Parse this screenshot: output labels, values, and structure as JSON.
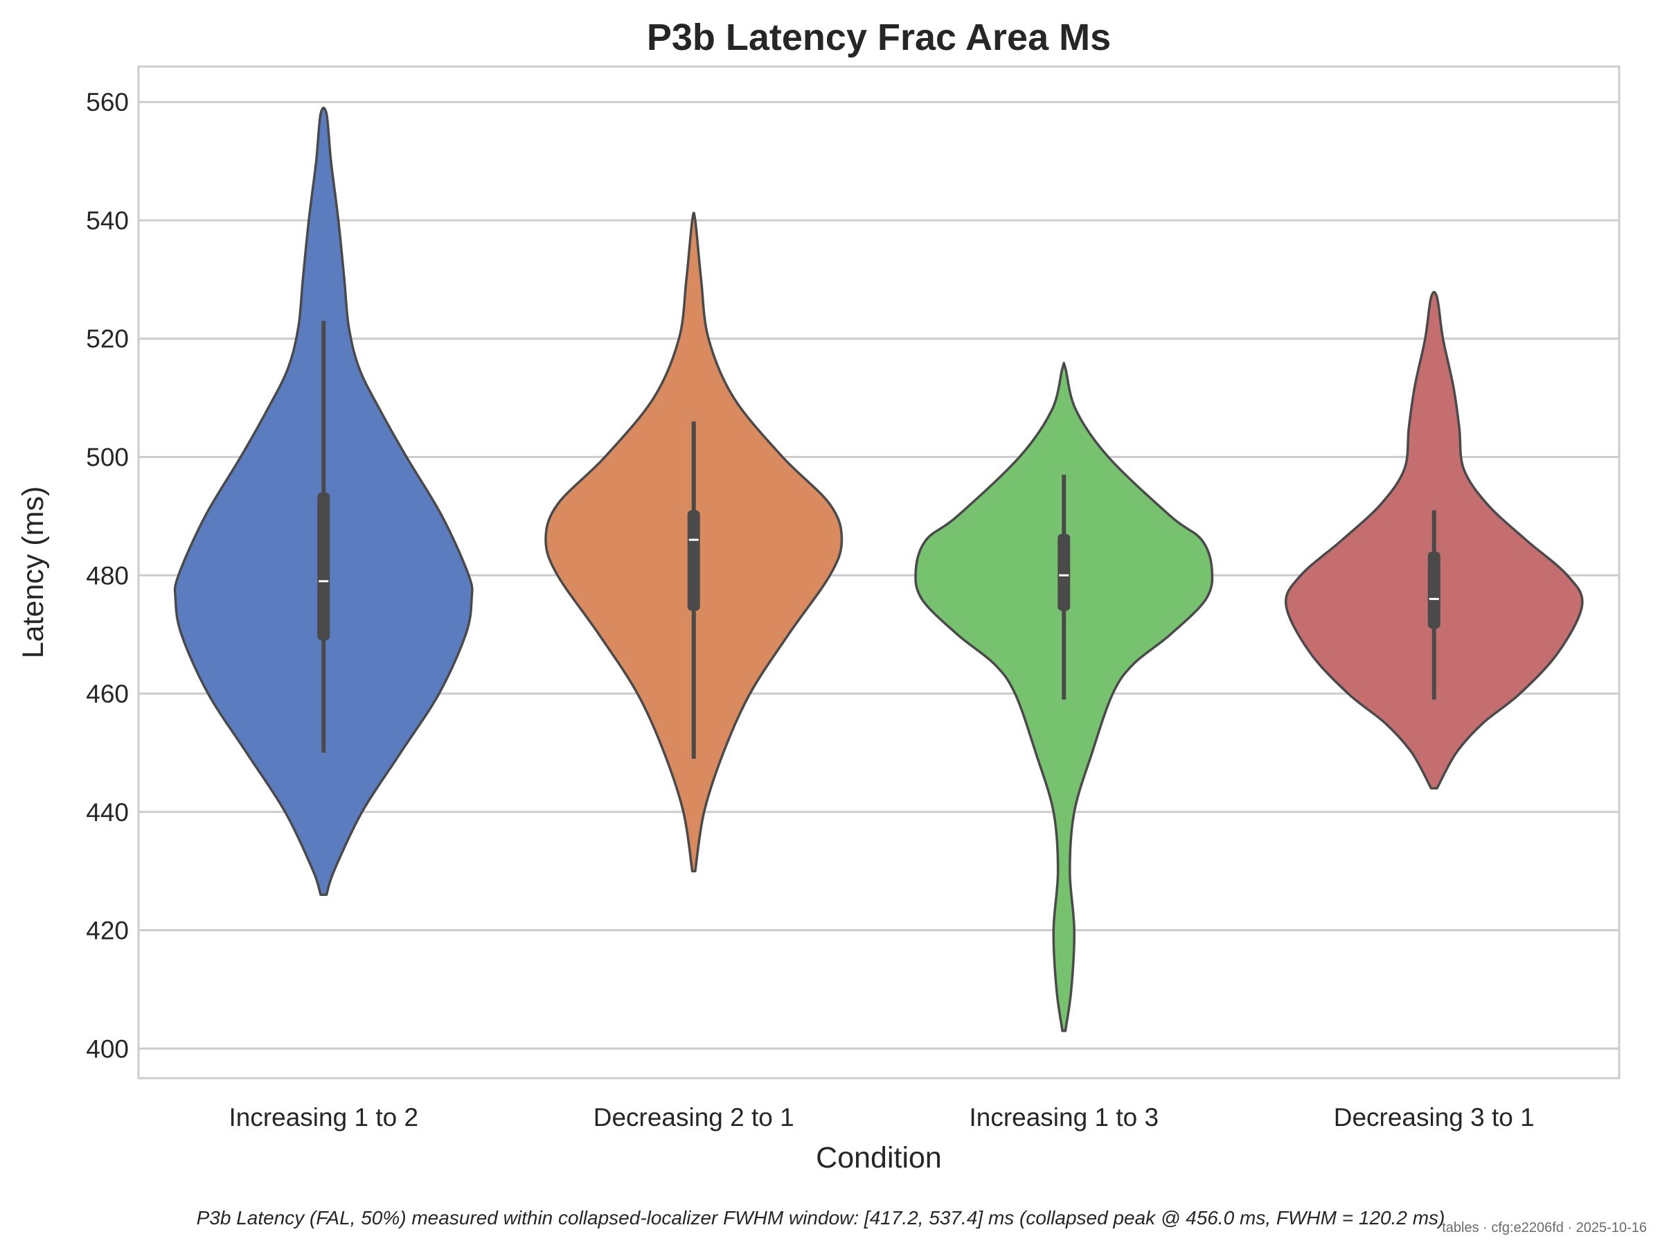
{
  "chart_data": {
    "type": "violin",
    "title": "P3b Latency Frac Area Ms",
    "xlabel": "Condition",
    "ylabel": "Latency (ms)",
    "ylim": [
      395,
      566
    ],
    "yticks": [
      400,
      420,
      440,
      460,
      480,
      500,
      520,
      540,
      560
    ],
    "grid": "horizontal",
    "categories": [
      "Increasing 1 to 2",
      "Decreasing 2 to 1",
      "Increasing 1 to 3",
      "Decreasing 3 to 1"
    ],
    "colors": [
      "#5b7dc0",
      "#d98a5e",
      "#77c26f",
      "#c56e6f"
    ],
    "outline_color": "#4a4a4a",
    "grid_color": "#cccccc",
    "violins": [
      {
        "name": "Increasing 1 to 2",
        "min": 450,
        "q1": 469,
        "median": 479,
        "q3": 494,
        "max": 523,
        "kde_min": 426,
        "kde_max": 558,
        "profile": [
          [
            426,
            0.02
          ],
          [
            430,
            0.07
          ],
          [
            440,
            0.26
          ],
          [
            450,
            0.52
          ],
          [
            460,
            0.78
          ],
          [
            470,
            0.96
          ],
          [
            476,
            1.0
          ],
          [
            480,
            0.98
          ],
          [
            490,
            0.8
          ],
          [
            500,
            0.56
          ],
          [
            508,
            0.38
          ],
          [
            515,
            0.24
          ],
          [
            522,
            0.17
          ],
          [
            530,
            0.14
          ],
          [
            540,
            0.1
          ],
          [
            550,
            0.05
          ],
          [
            558,
            0.02
          ]
        ]
      },
      {
        "name": "Decreasing 2 to 1",
        "min": 449,
        "q1": 474,
        "median": 486,
        "q3": 491,
        "max": 506,
        "kde_min": 430,
        "kde_max": 540,
        "profile": [
          [
            430,
            0.01
          ],
          [
            440,
            0.07
          ],
          [
            450,
            0.2
          ],
          [
            460,
            0.38
          ],
          [
            470,
            0.64
          ],
          [
            480,
            0.92
          ],
          [
            486,
            1.0
          ],
          [
            492,
            0.92
          ],
          [
            500,
            0.6
          ],
          [
            510,
            0.27
          ],
          [
            520,
            0.1
          ],
          [
            530,
            0.05
          ],
          [
            540,
            0.01
          ]
        ]
      },
      {
        "name": "Increasing 1 to 3",
        "min": 459,
        "q1": 474,
        "median": 480,
        "q3": 487,
        "max": 497,
        "kde_min": 403,
        "kde_max": 515,
        "profile": [
          [
            403,
            0.01
          ],
          [
            410,
            0.05
          ],
          [
            420,
            0.07
          ],
          [
            430,
            0.04
          ],
          [
            440,
            0.07
          ],
          [
            450,
            0.19
          ],
          [
            460,
            0.33
          ],
          [
            465,
            0.47
          ],
          [
            470,
            0.72
          ],
          [
            476,
            0.96
          ],
          [
            481,
            1.0
          ],
          [
            486,
            0.93
          ],
          [
            490,
            0.72
          ],
          [
            500,
            0.3
          ],
          [
            508,
            0.08
          ],
          [
            515,
            0.01
          ]
        ]
      },
      {
        "name": "Decreasing 3 to 1",
        "min": 459,
        "q1": 471,
        "median": 476,
        "q3": 484,
        "max": 491,
        "kde_min": 444,
        "kde_max": 527,
        "profile": [
          [
            444,
            0.02
          ],
          [
            450,
            0.15
          ],
          [
            455,
            0.33
          ],
          [
            460,
            0.58
          ],
          [
            467,
            0.84
          ],
          [
            475,
            1.0
          ],
          [
            480,
            0.9
          ],
          [
            486,
            0.62
          ],
          [
            492,
            0.36
          ],
          [
            498,
            0.2
          ],
          [
            505,
            0.17
          ],
          [
            512,
            0.13
          ],
          [
            520,
            0.06
          ],
          [
            527,
            0.02
          ]
        ]
      }
    ],
    "caption": "P3b Latency (FAL, 50%) measured within collapsed-localizer FWHM window: [417.2, 537.4] ms (collapsed peak @ 456.0 ms, FWHM = 120.2 ms)",
    "stamp": "tables · cfg:e2206fd · 2025-10-16"
  }
}
